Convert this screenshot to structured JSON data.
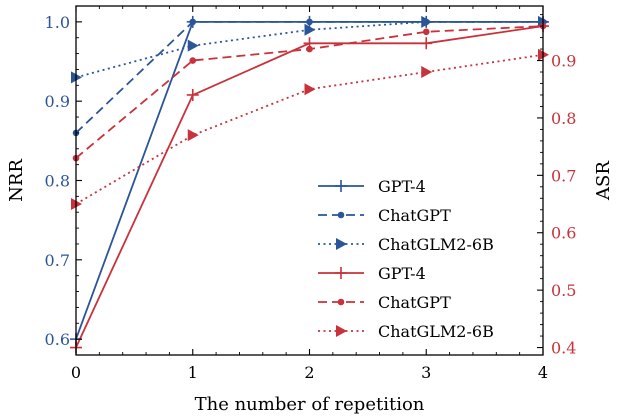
{
  "chart_data": {
    "type": "line",
    "xlabel": "The number of repetition",
    "x": [
      0,
      1,
      2,
      3,
      4
    ],
    "x_ticks": [
      "0",
      "1",
      "2",
      "3",
      "4"
    ],
    "xlim": [
      0,
      4
    ],
    "left_axis": {
      "label": "NRR",
      "ylim": [
        0.58,
        1.02
      ],
      "ticks": [
        "0.6",
        "0.7",
        "0.8",
        "0.9",
        "1.0"
      ],
      "tick_values": [
        0.6,
        0.7,
        0.8,
        0.9,
        1.0
      ],
      "color": "#2a5599"
    },
    "right_axis": {
      "label": "ASR",
      "ylim": [
        0.387,
        0.995
      ],
      "ticks": [
        "0.4",
        "0.5",
        "0.6",
        "0.7",
        "0.8",
        "0.9"
      ],
      "tick_values": [
        0.4,
        0.5,
        0.6,
        0.7,
        0.8,
        0.9
      ],
      "color": "#c8323a"
    },
    "series": [
      {
        "name": "GPT-4",
        "axis": "left",
        "style": "solid",
        "marker": "plus",
        "color": "#2a5599",
        "values": [
          0.6,
          1.0,
          1.0,
          1.0,
          1.0
        ]
      },
      {
        "name": "ChatGPT",
        "axis": "left",
        "style": "dashed",
        "marker": "dot",
        "color": "#2a5599",
        "values": [
          0.86,
          1.0,
          1.0,
          1.0,
          1.0
        ]
      },
      {
        "name": "ChatGLM2-6B",
        "axis": "left",
        "style": "dotted",
        "marker": "triangle",
        "color": "#2a5599",
        "values": [
          0.93,
          0.97,
          0.99,
          1.0,
          1.0
        ]
      },
      {
        "name": "GPT-4",
        "axis": "right",
        "style": "solid",
        "marker": "plus",
        "color": "#c8323a",
        "values": [
          0.4,
          0.84,
          0.93,
          0.93,
          0.96
        ]
      },
      {
        "name": "ChatGPT",
        "axis": "right",
        "style": "dashed",
        "marker": "dot",
        "color": "#c8323a",
        "values": [
          0.73,
          0.9,
          0.92,
          0.95,
          0.96
        ]
      },
      {
        "name": "ChatGLM2-6B",
        "axis": "right",
        "style": "dotted",
        "marker": "triangle",
        "color": "#c8323a",
        "values": [
          0.65,
          0.77,
          0.85,
          0.88,
          0.91
        ]
      }
    ],
    "legend_position": "lower-right",
    "grid": false
  }
}
